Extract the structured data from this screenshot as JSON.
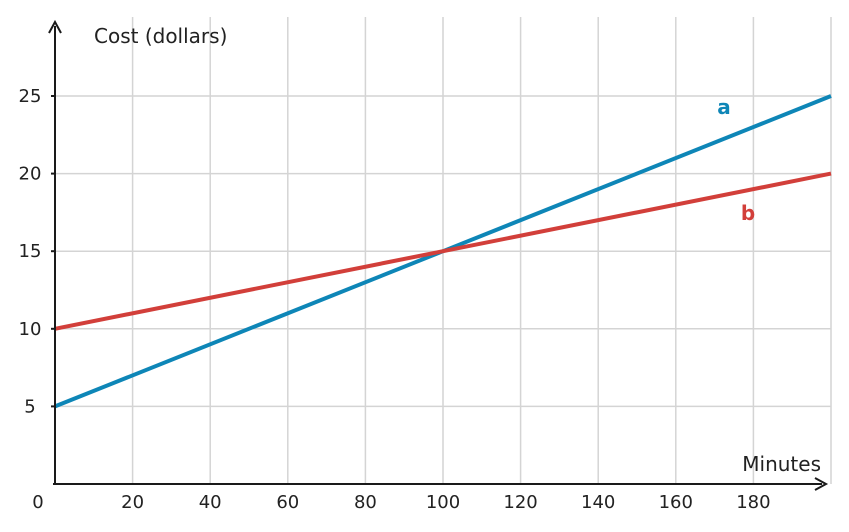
{
  "chart_data": {
    "type": "line",
    "title": "",
    "xlabel": "Minutes",
    "ylabel": "Cost (dollars)",
    "xlim": [
      0,
      200
    ],
    "ylim": [
      0,
      28
    ],
    "x_ticks": [
      20,
      40,
      60,
      80,
      100,
      120,
      140,
      160,
      180
    ],
    "y_ticks": [
      5,
      10,
      15,
      20,
      25
    ],
    "origin_label": "0",
    "grid": true,
    "series": [
      {
        "name": "a",
        "color": "#0e86b7",
        "x": [
          0,
          100,
          200
        ],
        "y": [
          5,
          15,
          25
        ]
      },
      {
        "name": "b",
        "color": "#d23f3a",
        "x": [
          0,
          100,
          200
        ],
        "y": [
          10,
          15,
          20
        ]
      }
    ]
  }
}
